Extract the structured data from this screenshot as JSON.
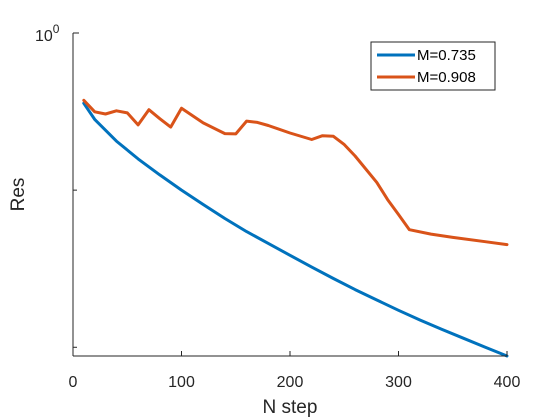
{
  "chart_data": {
    "type": "line",
    "xlabel": "N step",
    "ylabel": "Res",
    "xlim": [
      0,
      400
    ],
    "y_scale": "log",
    "y_top_tick": {
      "base": "10",
      "exponent": "0"
    },
    "x_ticks": [
      "0",
      "100",
      "200",
      "300",
      "400"
    ],
    "grid": false,
    "legend_position": "top-right",
    "series": [
      {
        "name": "M=0.735",
        "color": "#0072BD",
        "x": [
          10,
          20,
          40,
          60,
          80,
          100,
          120,
          140,
          160,
          180,
          200,
          220,
          240,
          260,
          280,
          300,
          320,
          340,
          360,
          380,
          400
        ],
        "y": [
          0.357,
          0.282,
          0.205,
          0.158,
          0.125,
          0.1,
          0.081,
          0.066,
          0.0545,
          0.0458,
          0.0385,
          0.0324,
          0.0274,
          0.0233,
          0.02,
          0.0172,
          0.0149,
          0.013,
          0.0114,
          0.01,
          0.0088
        ]
      },
      {
        "name": "M=0.908",
        "color": "#D95319",
        "x": [
          10,
          20,
          30,
          40,
          50,
          60,
          70,
          80,
          90,
          100,
          120,
          140,
          150,
          160,
          170,
          180,
          200,
          220,
          230,
          240,
          250,
          260,
          280,
          290,
          300,
          310,
          330,
          350,
          380,
          400
        ],
        "y": [
          0.373,
          0.315,
          0.305,
          0.32,
          0.31,
          0.26,
          0.325,
          0.285,
          0.252,
          0.332,
          0.268,
          0.229,
          0.228,
          0.275,
          0.27,
          0.258,
          0.231,
          0.21,
          0.222,
          0.22,
          0.195,
          0.165,
          0.112,
          0.087,
          0.07,
          0.056,
          0.0525,
          0.05,
          0.047,
          0.045
        ]
      }
    ]
  }
}
